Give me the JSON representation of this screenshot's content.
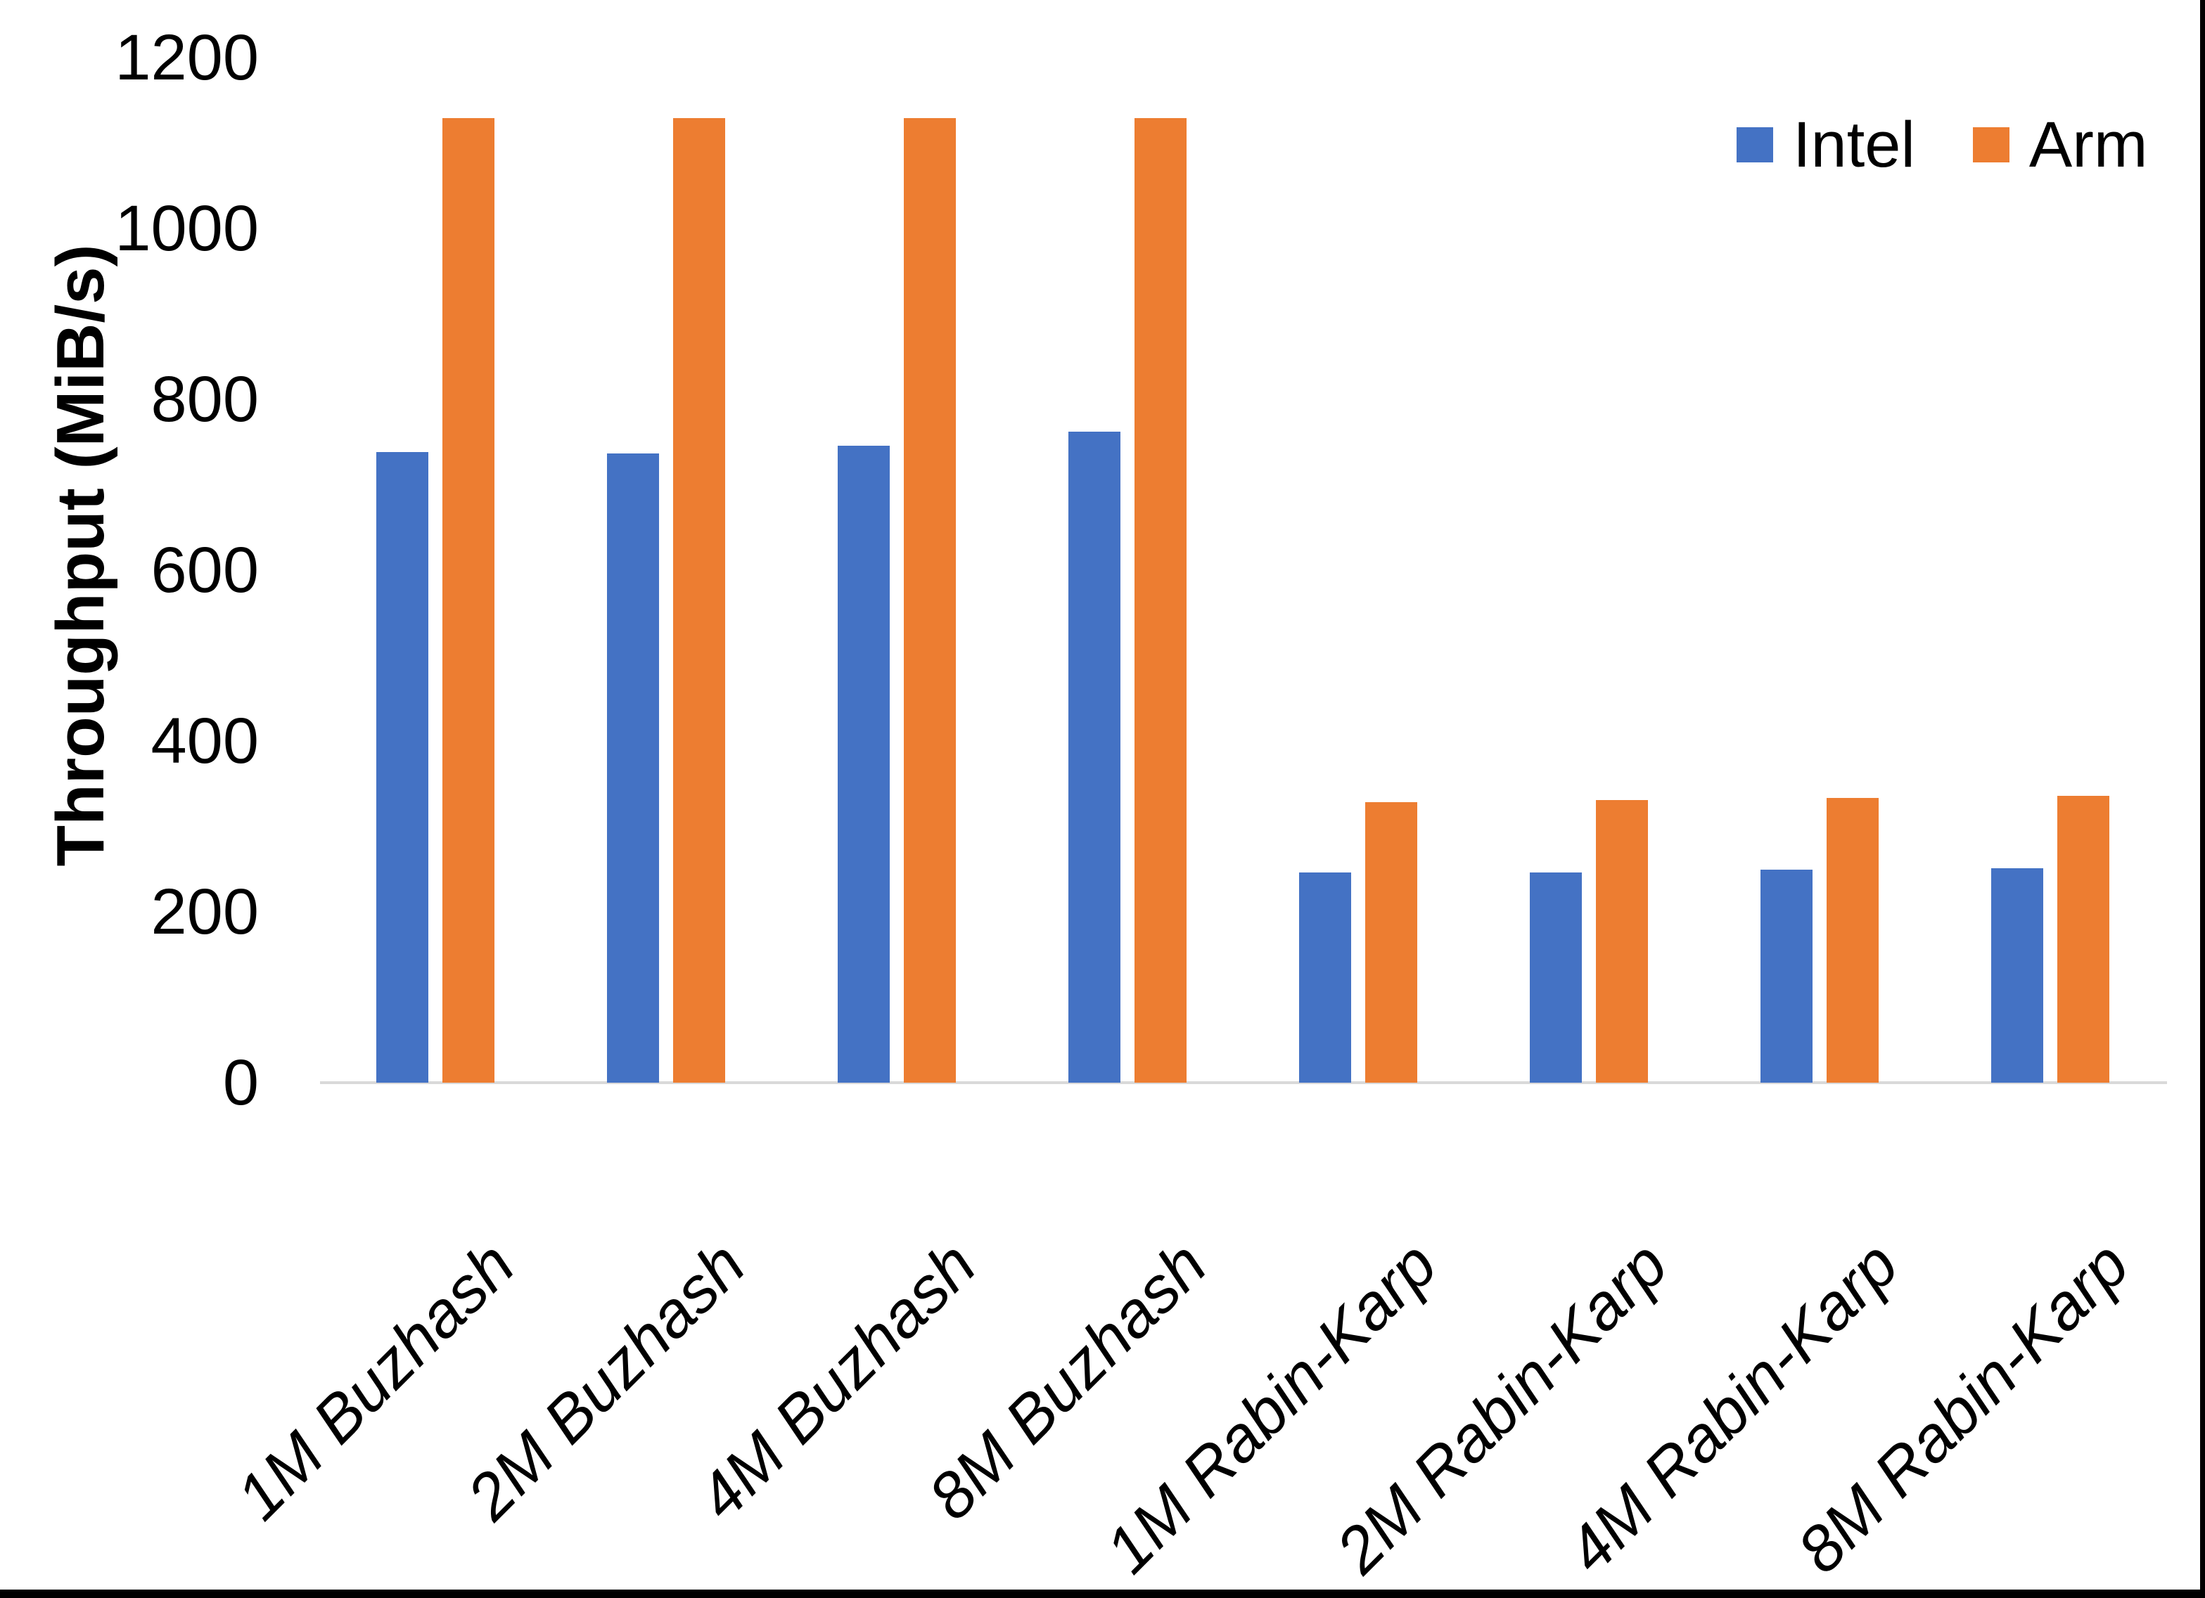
{
  "chart_data": {
    "type": "bar",
    "title": "",
    "xlabel": "",
    "ylabel": "Throughput (MiB/s)",
    "ylim": [
      0,
      1200
    ],
    "yticks": [
      0,
      200,
      400,
      600,
      800,
      1000,
      1200
    ],
    "grid": false,
    "legend_position": "top-right",
    "categories": [
      "1M Buzhash",
      "2M Buzhash",
      "4M Buzhash",
      "8M Buzhash",
      "1M Rabin-Karp",
      "2M Rabin-Karp",
      "4M Rabin-Karp",
      "8M Rabin-Karp"
    ],
    "series": [
      {
        "name": "Intel",
        "color": "#4472C4",
        "values": [
          738,
          737,
          746,
          762,
          246,
          246,
          249,
          251
        ]
      },
      {
        "name": "Arm",
        "color": "#ED7D31",
        "values": [
          1129,
          1129,
          1129,
          1129,
          328,
          331,
          333,
          336
        ]
      }
    ],
    "colors": {
      "axis_line": "#D9D9D9",
      "text": "#000000",
      "frame_border": "#000000",
      "background": "#FFFFFF"
    }
  }
}
